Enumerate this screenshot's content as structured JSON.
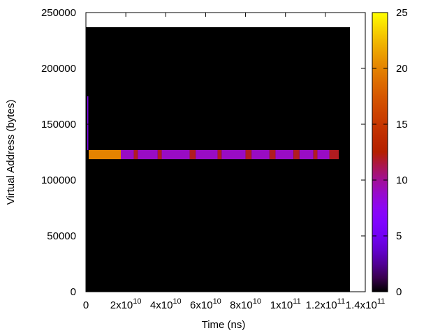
{
  "chart_data": {
    "type": "heatmap",
    "xlabel": "Time (ns)",
    "ylabel": "Virtual Address (bytes)",
    "xlim": [
      0,
      140000000000
    ],
    "ylim": [
      0,
      250000
    ],
    "xticks": [
      0,
      {
        "value": 20000000000,
        "label": "2x10",
        "exp": "10"
      },
      {
        "value": 40000000000,
        "label": "4x10",
        "exp": "10"
      },
      {
        "value": 60000000000,
        "label": "6x10",
        "exp": "10"
      },
      {
        "value": 80000000000,
        "label": "8x10",
        "exp": "10"
      },
      {
        "value": 100000000000,
        "label": "1x10",
        "exp": "11"
      },
      {
        "value": 120000000000,
        "label": "1.2x10",
        "exp": "11"
      },
      {
        "value": 140000000000,
        "label": "1.4x10",
        "exp": "11"
      }
    ],
    "yticks": [
      0,
      50000,
      100000,
      150000,
      200000,
      250000
    ],
    "cblim": [
      0,
      25
    ],
    "cbticks": [
      0,
      5,
      10,
      15,
      20,
      25
    ],
    "palette": "gnuplot-7-5-15",
    "cells": [
      {
        "x": [
          0,
          132300000000
        ],
        "y": [
          0,
          236900
        ],
        "value": 0
      },
      {
        "x": [
          700000000,
          1200000000
        ],
        "y": [
          126900,
          175000
        ],
        "value": 7
      },
      {
        "x": [
          1400000000,
          17500000000
        ],
        "y": [
          118700,
          126900
        ],
        "value": 20
      },
      {
        "x": [
          17500000000,
          24000000000
        ],
        "y": [
          118700,
          126900
        ],
        "value": 9
      },
      {
        "x": [
          24000000000,
          26000000000
        ],
        "y": [
          118700,
          126900
        ],
        "value": 12
      },
      {
        "x": [
          26000000000,
          36000000000
        ],
        "y": [
          118700,
          126900
        ],
        "value": 9
      },
      {
        "x": [
          36000000000,
          38000000000
        ],
        "y": [
          118700,
          126900
        ],
        "value": 12
      },
      {
        "x": [
          38000000000,
          52000000000
        ],
        "y": [
          118700,
          126900
        ],
        "value": 9
      },
      {
        "x": [
          52000000000,
          55000000000
        ],
        "y": [
          118700,
          126900
        ],
        "value": 12
      },
      {
        "x": [
          55000000000,
          66000000000
        ],
        "y": [
          118700,
          126900
        ],
        "value": 9
      },
      {
        "x": [
          66000000000,
          68000000000
        ],
        "y": [
          118700,
          126900
        ],
        "value": 12
      },
      {
        "x": [
          68000000000,
          80000000000
        ],
        "y": [
          118700,
          126900
        ],
        "value": 9
      },
      {
        "x": [
          80000000000,
          83000000000
        ],
        "y": [
          118700,
          126900
        ],
        "value": 12
      },
      {
        "x": [
          83000000000,
          92000000000
        ],
        "y": [
          118700,
          126900
        ],
        "value": 9
      },
      {
        "x": [
          92000000000,
          95000000000
        ],
        "y": [
          118700,
          126900
        ],
        "value": 12
      },
      {
        "x": [
          95000000000,
          104000000000
        ],
        "y": [
          118700,
          126900
        ],
        "value": 9
      },
      {
        "x": [
          104000000000,
          107000000000
        ],
        "y": [
          118700,
          126900
        ],
        "value": 12
      },
      {
        "x": [
          107000000000,
          114000000000
        ],
        "y": [
          118700,
          126900
        ],
        "value": 9
      },
      {
        "x": [
          114000000000,
          116000000000
        ],
        "y": [
          118700,
          126900
        ],
        "value": 12
      },
      {
        "x": [
          116000000000,
          122000000000
        ],
        "y": [
          118700,
          126900
        ],
        "value": 9
      },
      {
        "x": [
          122000000000,
          126700000000
        ],
        "y": [
          118700,
          126900
        ],
        "value": 12
      }
    ]
  }
}
